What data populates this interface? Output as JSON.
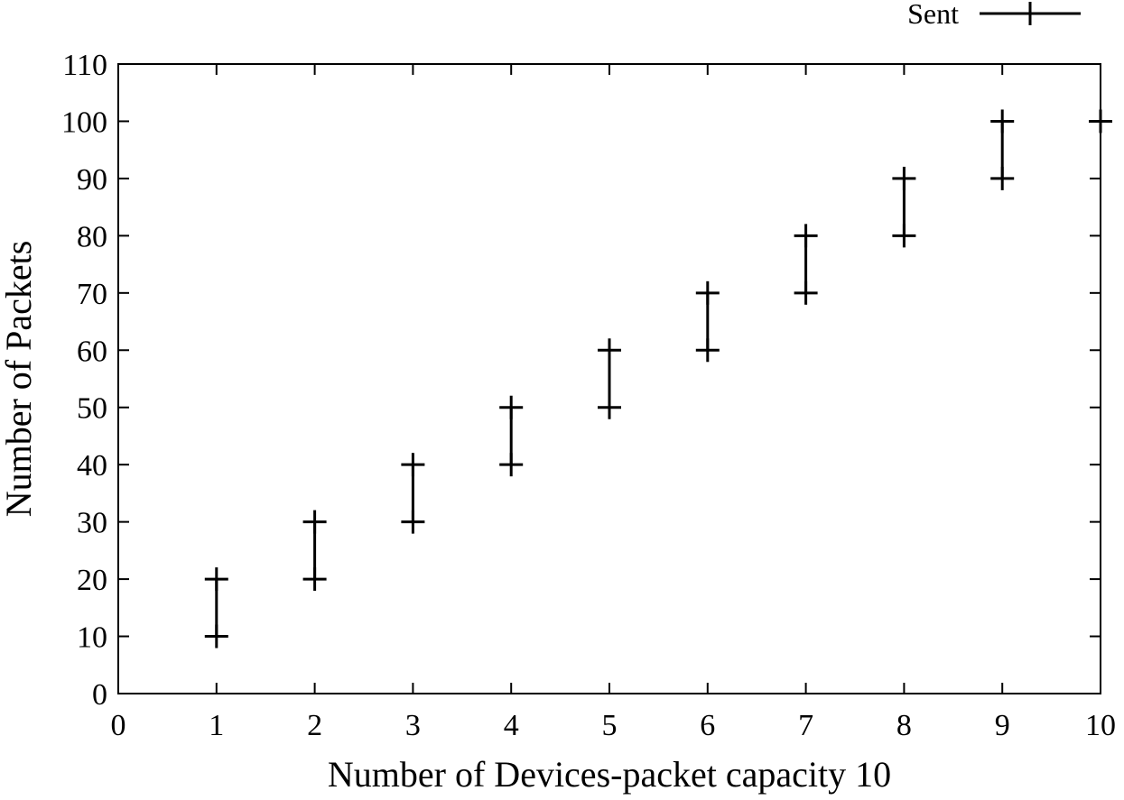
{
  "chart_data": {
    "type": "errorbar",
    "title": "",
    "xlabel": "Number of Devices-packet capacity 10",
    "ylabel": "Number of Packets",
    "xlim": [
      0,
      10
    ],
    "ylim": [
      0,
      110
    ],
    "xticks": [
      "0",
      "1",
      "2",
      "3",
      "4",
      "5",
      "6",
      "7",
      "8",
      "9",
      "10"
    ],
    "yticks": [
      "0",
      "10",
      "20",
      "30",
      "40",
      "50",
      "60",
      "70",
      "80",
      "90",
      "100",
      "110"
    ],
    "legend": {
      "position": "top-right",
      "entries": [
        "Sent"
      ]
    },
    "grid": false,
    "color": "#000000",
    "series": [
      {
        "name": "Sent",
        "points": [
          {
            "x": 1,
            "low": 10,
            "high": 20
          },
          {
            "x": 2,
            "low": 20,
            "high": 30
          },
          {
            "x": 3,
            "low": 30,
            "high": 40
          },
          {
            "x": 4,
            "low": 40,
            "high": 50
          },
          {
            "x": 5,
            "low": 50,
            "high": 60
          },
          {
            "x": 6,
            "low": 60,
            "high": 70
          },
          {
            "x": 7,
            "low": 70,
            "high": 80
          },
          {
            "x": 8,
            "low": 80,
            "high": 90
          },
          {
            "x": 9,
            "low": 90,
            "high": 100
          },
          {
            "x": 10,
            "low": 100,
            "high": 100
          }
        ]
      }
    ]
  }
}
